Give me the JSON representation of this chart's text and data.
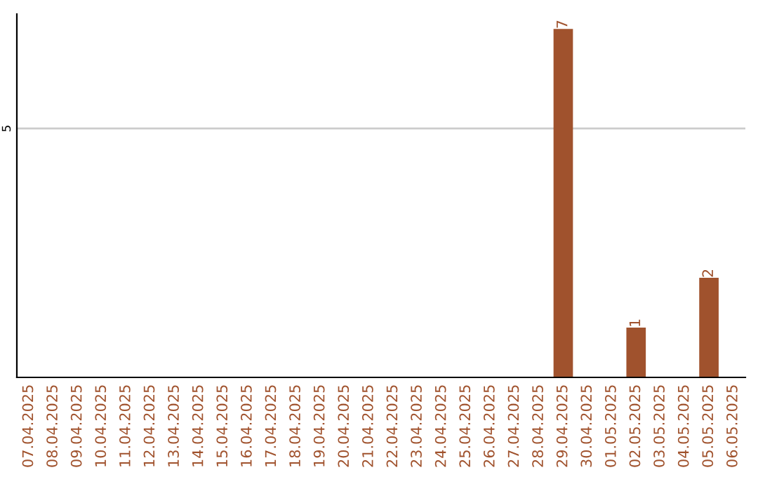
{
  "chart_data": {
    "type": "bar",
    "categories": [
      "07.04.2025",
      "08.04.2025",
      "09.04.2025",
      "10.04.2025",
      "11.04.2025",
      "12.04.2025",
      "13.04.2025",
      "14.04.2025",
      "15.04.2025",
      "16.04.2025",
      "17.04.2025",
      "18.04.2025",
      "19.04.2025",
      "20.04.2025",
      "21.04.2025",
      "22.04.2025",
      "23.04.2025",
      "24.04.2025",
      "25.04.2025",
      "26.04.2025",
      "27.04.2025",
      "28.04.2025",
      "29.04.2025",
      "30.04.2025",
      "01.05.2025",
      "02.05.2025",
      "03.05.2025",
      "04.05.2025",
      "05.05.2025",
      "06.05.2025"
    ],
    "values": [
      null,
      null,
      null,
      null,
      null,
      null,
      null,
      null,
      null,
      null,
      null,
      null,
      null,
      null,
      null,
      null,
      null,
      null,
      null,
      null,
      null,
      null,
      7,
      null,
      null,
      1,
      null,
      null,
      2,
      null
    ],
    "value_labels": [
      null,
      null,
      null,
      null,
      null,
      null,
      null,
      null,
      null,
      null,
      null,
      null,
      null,
      null,
      null,
      null,
      null,
      null,
      null,
      null,
      null,
      null,
      "7",
      null,
      null,
      "1",
      null,
      null,
      "2",
      null
    ],
    "color": "#a0522d",
    "ylim": [
      0,
      7.3
    ],
    "yticks": [
      5
    ],
    "grid": "y",
    "legend": false
  }
}
